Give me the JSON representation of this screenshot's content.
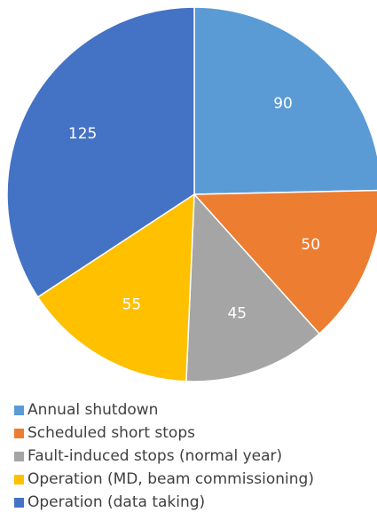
{
  "chart_data": {
    "type": "pie",
    "categories": [
      "Annual shutdown",
      "Scheduled short stops",
      "Fault-induced stops (normal year)",
      "Operation (MD, beam commissioning)",
      "Operation (data taking)"
    ],
    "values": [
      90,
      50,
      45,
      55,
      125
    ],
    "colors": [
      "#5b9bd5",
      "#ed7d31",
      "#a5a5a5",
      "#ffc000",
      "#4472c4"
    ],
    "start": "12 o'clock",
    "direction": "clockwise",
    "data_labels": [
      "90",
      "50",
      "45",
      "55",
      "125"
    ],
    "legend_position": "bottom-left",
    "title": ""
  }
}
